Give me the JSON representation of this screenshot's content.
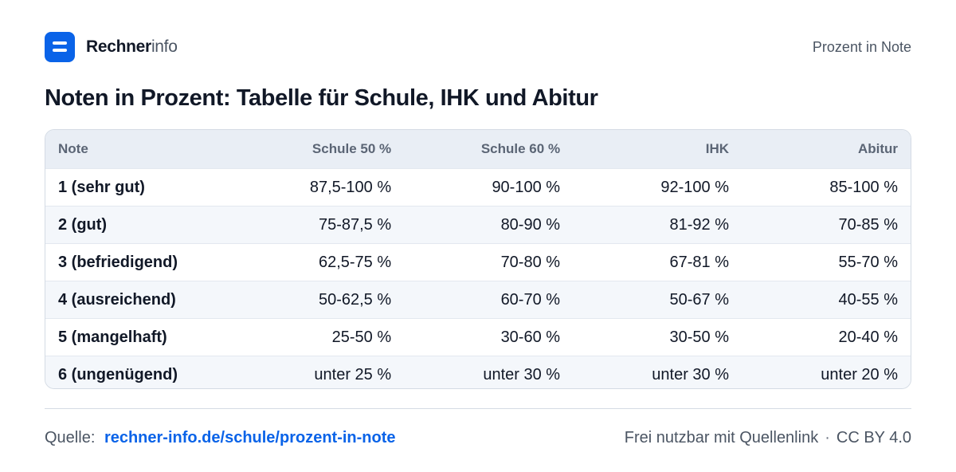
{
  "header": {
    "brand_strong": "Rechner",
    "brand_light": "info",
    "page_link": "Prozent in Note",
    "logo_icon": "equals-icon",
    "accent_color": "#0a63e8"
  },
  "title": "Noten in Prozent: Tabelle für Schule, IHK und Abitur",
  "table": {
    "columns": [
      "Note",
      "Schule 50 %",
      "Schule 60 %",
      "IHK",
      "Abitur"
    ],
    "rows": [
      [
        "1 (sehr gut)",
        "87,5-100 %",
        "90-100 %",
        "92-100 %",
        "85-100 %"
      ],
      [
        "2 (gut)",
        "75-87,5 %",
        "80-90 %",
        "81-92 %",
        "70-85 %"
      ],
      [
        "3 (befriedigend)",
        "62,5-75 %",
        "70-80 %",
        "67-81 %",
        "55-70 %"
      ],
      [
        "4 (ausreichend)",
        "50-62,5 %",
        "60-70 %",
        "50-67 %",
        "40-55 %"
      ],
      [
        "5 (mangelhaft)",
        "25-50 %",
        "30-60 %",
        "30-50 %",
        "20-40 %"
      ],
      [
        "6 (ungenügend)",
        "unter 25 %",
        "unter 30 %",
        "unter 30 %",
        "unter 20 %"
      ]
    ]
  },
  "footer": {
    "source_label": "Quelle:",
    "source_link": "rechner-info.de/schule/prozent-in-note",
    "license_text": "Frei nutzbar mit Quellenlink",
    "separator": "·",
    "license_name": "CC BY 4.0"
  }
}
